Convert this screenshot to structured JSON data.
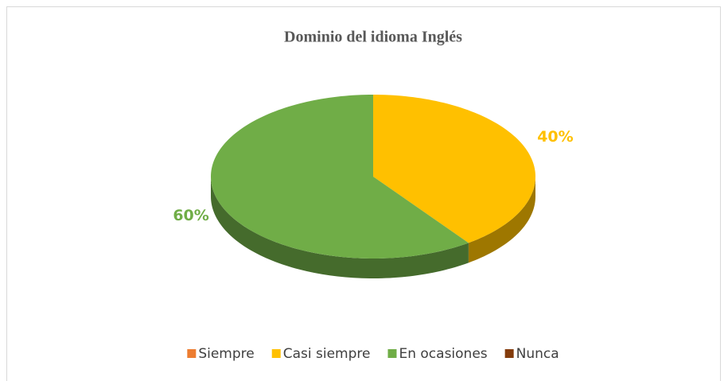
{
  "chart_data": {
    "type": "pie3d",
    "title": "Dominio del idioma Inglés",
    "categories": [
      "Siempre",
      "Casi siempre",
      "En ocasiones",
      "Nunca"
    ],
    "values": [
      0,
      40,
      60,
      0
    ],
    "value_labels": [
      null,
      "40%",
      "60%",
      null
    ],
    "colors": [
      "#ed7d31",
      "#ffc000",
      "#70ad47",
      "#843c0c"
    ],
    "legend": "bottom"
  }
}
